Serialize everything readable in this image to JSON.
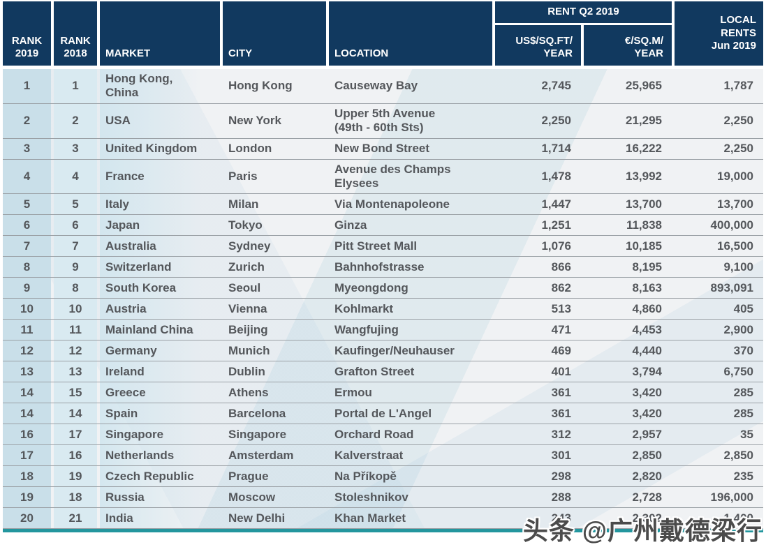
{
  "chart_data": {
    "type": "table",
    "header": {
      "rank2019": "RANK\n2019",
      "rank2018": "RANK\n2018",
      "market": "MARKET",
      "city": "CITY",
      "location": "LOCATION",
      "rent_group": "RENT Q2 2019",
      "usd": "US$/SQ.FT/\nYEAR",
      "eur": "€/SQ.M/\nYEAR",
      "local": "LOCAL\nRENTS\nJun 2019"
    },
    "rows": [
      {
        "rank2019": "1",
        "rank2018": "1",
        "market": "Hong Kong,\nChina",
        "city": "Hong Kong",
        "location": "Causeway Bay",
        "usd": "2,745",
        "eur": "25,965",
        "local": "1,787"
      },
      {
        "rank2019": "2",
        "rank2018": "2",
        "market": "USA",
        "city": "New York",
        "location": "Upper 5th Avenue\n(49th - 60th Sts)",
        "usd": "2,250",
        "eur": "21,295",
        "local": "2,250"
      },
      {
        "rank2019": "3",
        "rank2018": "3",
        "market": "United Kingdom",
        "city": "London",
        "location": "New Bond Street",
        "usd": "1,714",
        "eur": "16,222",
        "local": "2,250"
      },
      {
        "rank2019": "4",
        "rank2018": "4",
        "market": "France",
        "city": "Paris",
        "location": "Avenue des Champs\nElysees",
        "usd": "1,478",
        "eur": "13,992",
        "local": "19,000"
      },
      {
        "rank2019": "5",
        "rank2018": "5",
        "market": "Italy",
        "city": "Milan",
        "location": "Via Montenapoleone",
        "usd": "1,447",
        "eur": "13,700",
        "local": "13,700"
      },
      {
        "rank2019": "6",
        "rank2018": "6",
        "market": "Japan",
        "city": "Tokyo",
        "location": "Ginza",
        "usd": "1,251",
        "eur": "11,838",
        "local": "400,000"
      },
      {
        "rank2019": "7",
        "rank2018": "7",
        "market": "Australia",
        "city": "Sydney",
        "location": "Pitt Street Mall",
        "usd": "1,076",
        "eur": "10,185",
        "local": "16,500"
      },
      {
        "rank2019": "8",
        "rank2018": "9",
        "market": "Switzerland",
        "city": "Zurich",
        "location": "Bahnhofstrasse",
        "usd": "866",
        "eur": "8,195",
        "local": "9,100"
      },
      {
        "rank2019": "9",
        "rank2018": "8",
        "market": "South Korea",
        "city": "Seoul",
        "location": "Myeongdong",
        "usd": "862",
        "eur": "8,163",
        "local": "893,091"
      },
      {
        "rank2019": "10",
        "rank2018": "10",
        "market": "Austria",
        "city": "Vienna",
        "location": "Kohlmarkt",
        "usd": "513",
        "eur": "4,860",
        "local": "405"
      },
      {
        "rank2019": "11",
        "rank2018": "11",
        "market": "Mainland China",
        "city": "Beijing",
        "location": "Wangfujing",
        "usd": "471",
        "eur": "4,453",
        "local": "2,900"
      },
      {
        "rank2019": "12",
        "rank2018": "12",
        "market": "Germany",
        "city": "Munich",
        "location": "Kaufinger/Neuhauser",
        "usd": "469",
        "eur": "4,440",
        "local": "370"
      },
      {
        "rank2019": "13",
        "rank2018": "13",
        "market": "Ireland",
        "city": "Dublin",
        "location": "Grafton Street",
        "usd": "401",
        "eur": "3,794",
        "local": "6,750"
      },
      {
        "rank2019": "14",
        "rank2018": "15",
        "market": "Greece",
        "city": "Athens",
        "location": "Ermou",
        "usd": "361",
        "eur": "3,420",
        "local": "285"
      },
      {
        "rank2019": "14",
        "rank2018": "14",
        "market": "Spain",
        "city": "Barcelona",
        "location": "Portal de L'Angel",
        "usd": "361",
        "eur": "3,420",
        "local": "285"
      },
      {
        "rank2019": "16",
        "rank2018": "17",
        "market": "Singapore",
        "city": "Singapore",
        "location": "Orchard Road",
        "usd": "312",
        "eur": "2,957",
        "local": "35"
      },
      {
        "rank2019": "17",
        "rank2018": "16",
        "market": "Netherlands",
        "city": "Amsterdam",
        "location": "Kalverstraat",
        "usd": "301",
        "eur": "2,850",
        "local": "2,850"
      },
      {
        "rank2019": "18",
        "rank2018": "19",
        "market": "Czech Republic",
        "city": "Prague",
        "location": "Na Příkopě",
        "usd": "298",
        "eur": "2,820",
        "local": "235"
      },
      {
        "rank2019": "19",
        "rank2018": "18",
        "market": "Russia",
        "city": "Moscow",
        "location": "Stoleshnikov",
        "usd": "288",
        "eur": "2,728",
        "local": "196,000"
      },
      {
        "rank2019": "20",
        "rank2018": "21",
        "market": "India",
        "city": "New Delhi",
        "location": "Khan Market",
        "usd": "243",
        "eur": "2,302",
        "local": "1,400"
      }
    ],
    "layout": {
      "header_bg": "#11395f",
      "rank2019_col_bg": "#c9dfe9",
      "rank2018_col_bg": "#d9eaf1",
      "row_bg": "#f0f2f4",
      "separator_color": "#9ba1a6",
      "bottom_bar_color": "#23969e",
      "text_color": "#54575b"
    }
  },
  "watermark": {
    "text": "头条 @广州戴德梁行"
  }
}
